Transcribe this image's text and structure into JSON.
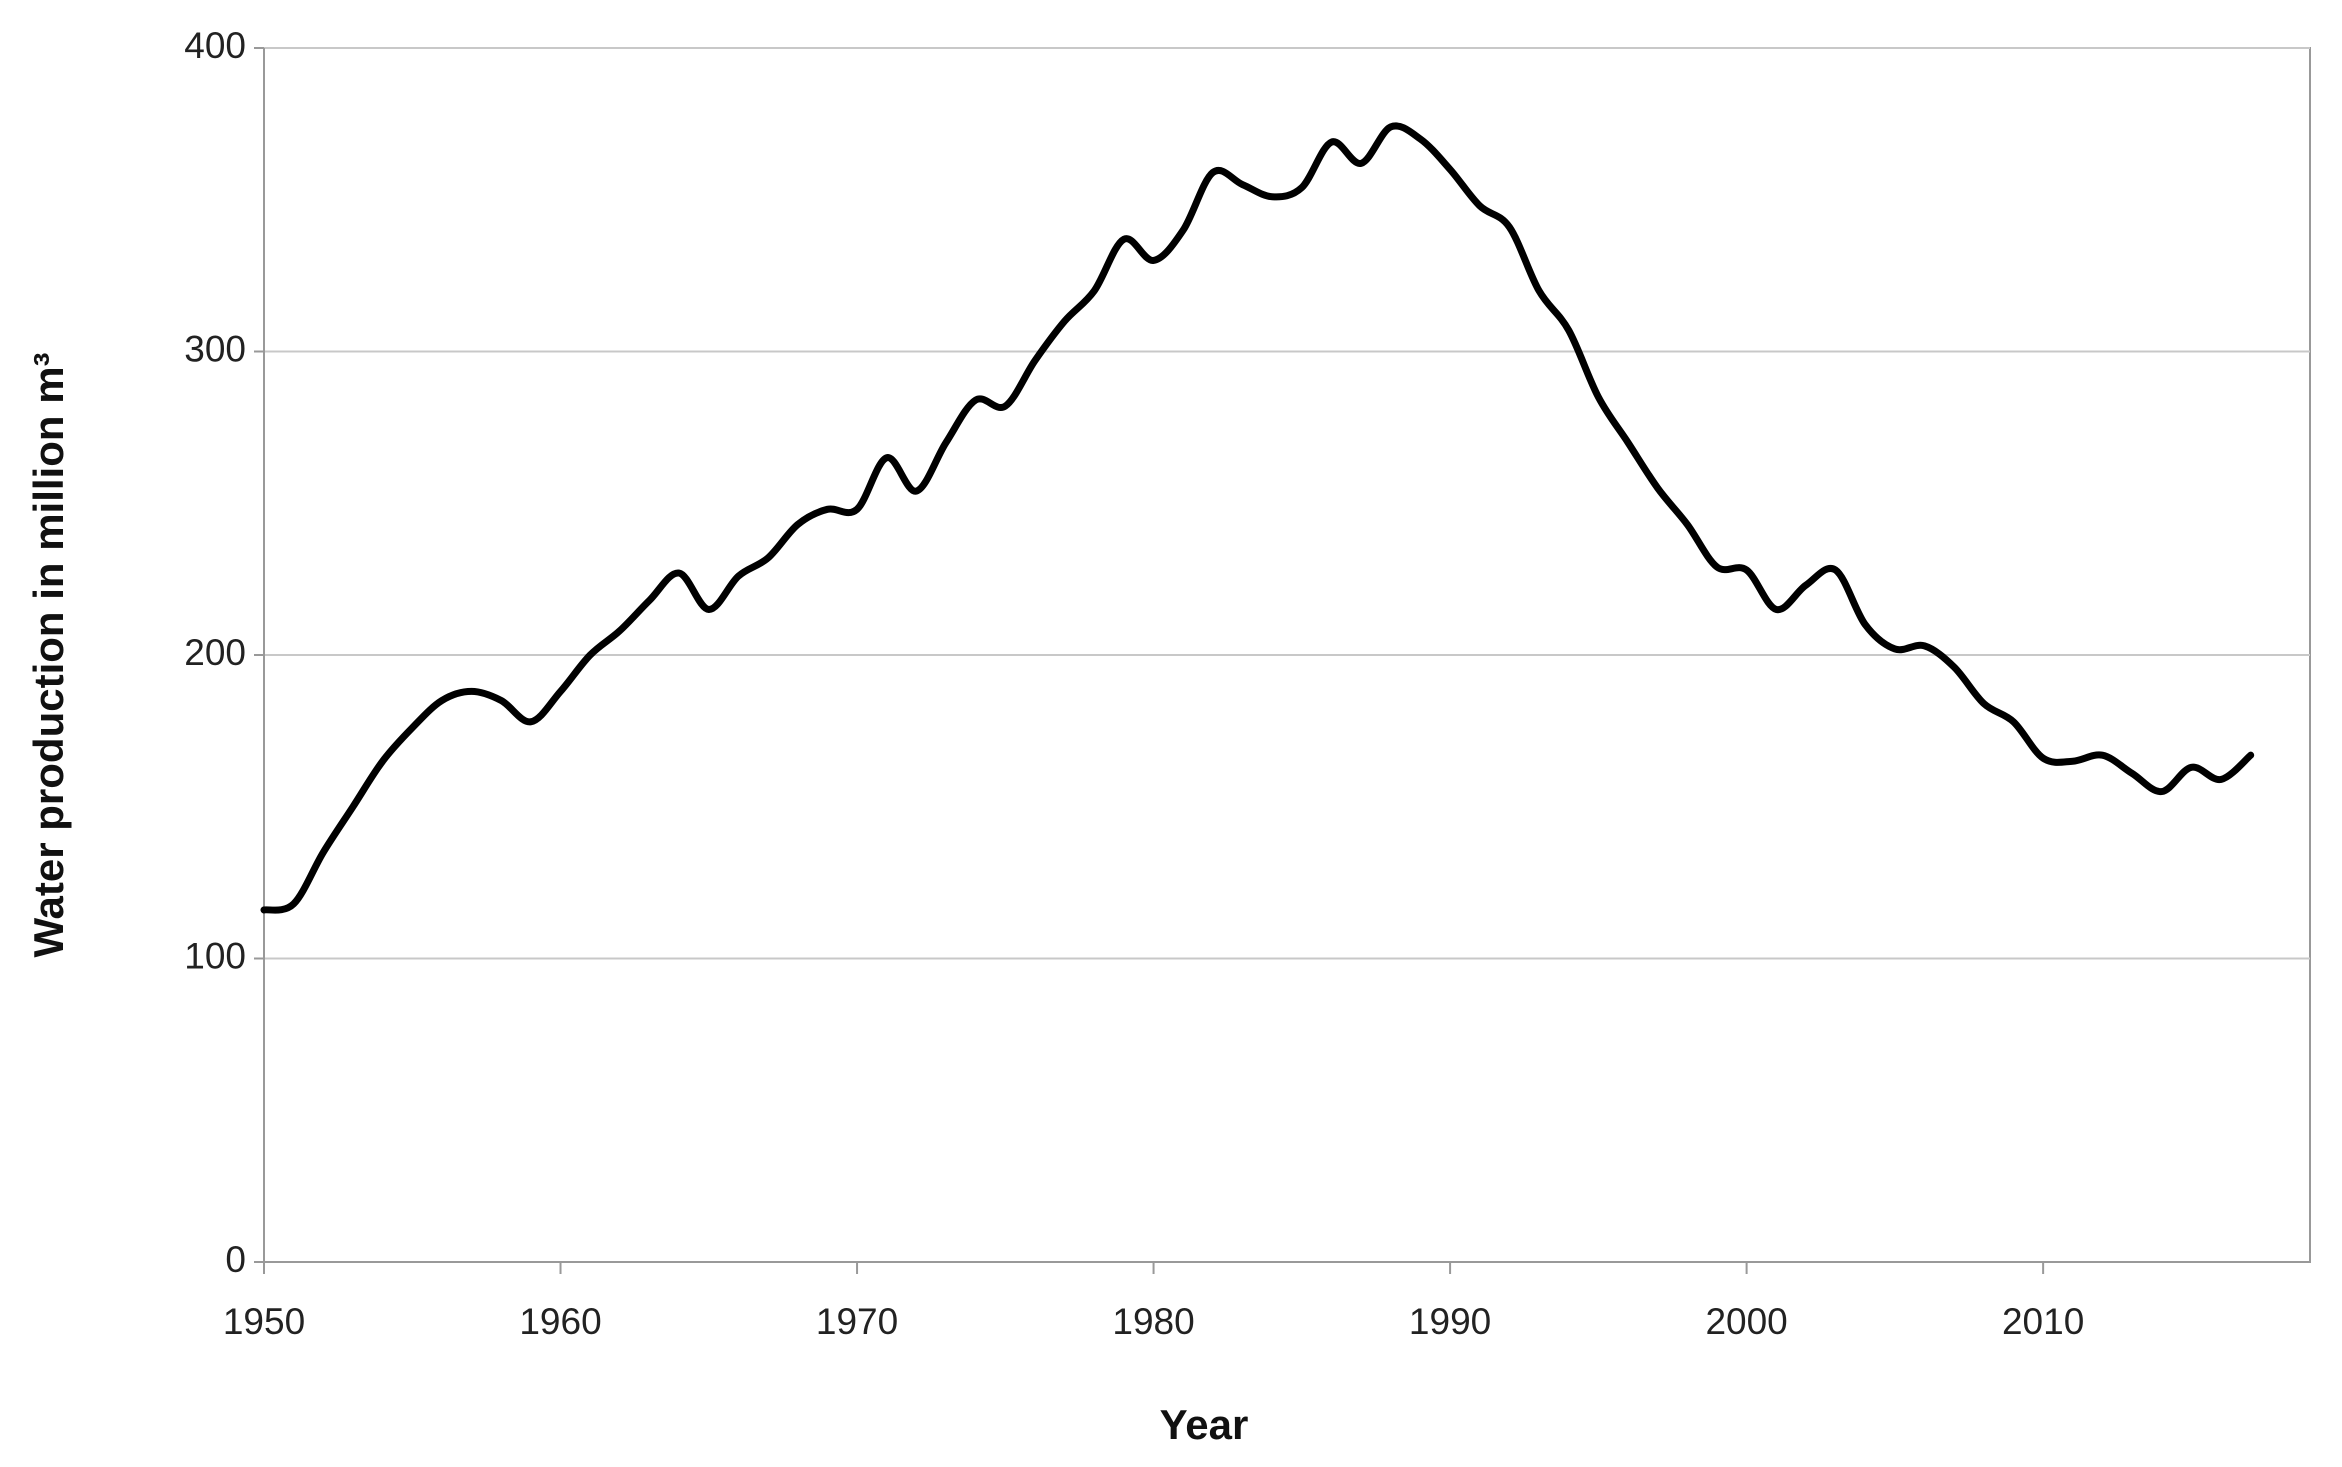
{
  "chart_data": {
    "type": "line",
    "x_label": "Year",
    "y_label": "Water production in million m³",
    "x": [
      1950,
      1951,
      1952,
      1953,
      1954,
      1955,
      1956,
      1957,
      1958,
      1959,
      1960,
      1961,
      1962,
      1963,
      1964,
      1965,
      1966,
      1967,
      1968,
      1969,
      1970,
      1971,
      1972,
      1973,
      1974,
      1975,
      1976,
      1977,
      1978,
      1979,
      1980,
      1981,
      1982,
      1983,
      1984,
      1985,
      1986,
      1987,
      1988,
      1989,
      1990,
      1991,
      1992,
      1993,
      1994,
      1995,
      1996,
      1997,
      1998,
      1999,
      2000,
      2001,
      2002,
      2003,
      2004,
      2005,
      2006,
      2007,
      2008,
      2009,
      2010,
      2011,
      2012,
      2013,
      2014,
      2015,
      2016,
      2017
    ],
    "values": [
      116,
      118,
      135,
      150,
      165,
      176,
      185,
      188,
      185,
      178,
      188,
      200,
      208,
      218,
      227,
      215,
      226,
      232,
      243,
      248,
      248,
      265,
      254,
      270,
      284,
      282,
      297,
      310,
      320,
      337,
      330,
      340,
      359,
      355,
      351,
      354,
      369,
      362,
      374,
      370,
      360,
      348,
      341,
      320,
      307,
      285,
      270,
      255,
      243,
      229,
      228,
      215,
      223,
      228,
      210,
      202,
      203,
      196,
      184,
      178,
      166,
      165,
      167,
      161,
      155,
      163,
      159,
      167
    ],
    "color": "#000000",
    "xlim": [
      1950,
      2019
    ],
    "xticks": [
      1950,
      1960,
      1970,
      1980,
      1990,
      2000,
      2010
    ],
    "ylim": [
      0,
      400
    ],
    "yticks": [
      0,
      100,
      200,
      300,
      400
    ],
    "grid": true
  }
}
